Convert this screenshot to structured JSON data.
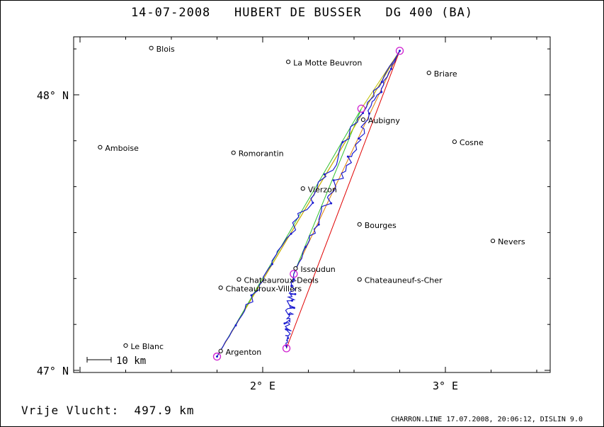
{
  "title": "14-07-2008   HUBERT DE BUSSER   DG 400 (BA)",
  "distance_label": "Vrije Vlucht:  497.9 km",
  "footer": "CHARRON.LINE 17.07.2008, 20:06:12, DISLIN 9.0",
  "scale_bar_label": "10 km",
  "axes": {
    "lon_ticks": [
      {
        "value": 2.0,
        "label": "2° E"
      },
      {
        "value": 3.0,
        "label": "3° E"
      }
    ],
    "lat_ticks": [
      {
        "value": 48.0,
        "label": "48° N"
      },
      {
        "value": 47.0,
        "label": "47° N"
      }
    ]
  },
  "cities": [
    {
      "name": "Blois",
      "lon": 1.39,
      "lat": 48.17
    },
    {
      "name": "La Motte Beuvron",
      "lon": 2.14,
      "lat": 48.12
    },
    {
      "name": "Briare",
      "lon": 2.91,
      "lat": 48.08
    },
    {
      "name": "Aubigny",
      "lon": 2.55,
      "lat": 47.91
    },
    {
      "name": "Cosne",
      "lon": 3.05,
      "lat": 47.83
    },
    {
      "name": "Amboise",
      "lon": 1.11,
      "lat": 47.81
    },
    {
      "name": "Romorantin",
      "lon": 1.84,
      "lat": 47.79
    },
    {
      "name": "Vierzon",
      "lon": 2.22,
      "lat": 47.66
    },
    {
      "name": "Bourges",
      "lon": 2.53,
      "lat": 47.53
    },
    {
      "name": "Nevers",
      "lon": 3.26,
      "lat": 47.47
    },
    {
      "name": "Issoudun",
      "lon": 2.18,
      "lat": 47.37
    },
    {
      "name": "Chateauroux-Deols",
      "lon": 1.87,
      "lat": 47.33
    },
    {
      "name": "Chateauneuf-s-Cher",
      "lon": 2.53,
      "lat": 47.33
    },
    {
      "name": "Chateauroux-Villers",
      "lon": 1.77,
      "lat": 47.3
    },
    {
      "name": "Le Blanc",
      "lon": 1.25,
      "lat": 47.09
    },
    {
      "name": "Argenton",
      "lon": 1.77,
      "lat": 47.07
    }
  ],
  "turnpoints": [
    {
      "lon": 2.75,
      "lat": 48.16
    },
    {
      "lon": 2.54,
      "lat": 47.95
    },
    {
      "lon": 2.17,
      "lat": 47.35
    },
    {
      "lon": 2.13,
      "lat": 47.08
    },
    {
      "lon": 1.75,
      "lat": 47.05
    }
  ],
  "colors": {
    "track": "#1a1ad0",
    "turnpoint": "#d020d0",
    "leg_lines": [
      "#e00000",
      "#e08000",
      "#30c030",
      "#c0c000"
    ]
  }
}
